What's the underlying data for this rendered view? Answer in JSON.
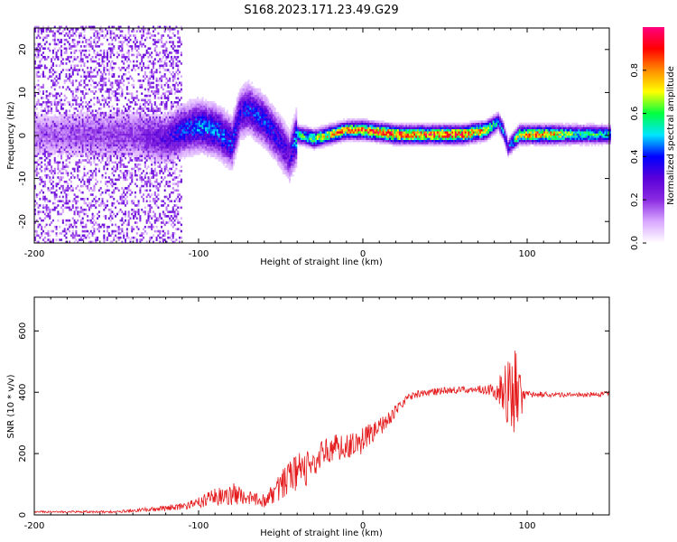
{
  "figure_title": "S168.2023.171.23.49.G29",
  "chart_data": [
    {
      "type": "heatmap",
      "title": "S168.2023.171.23.49.G29",
      "xlabel": "Height of straight line (km)",
      "ylabel": "Frequency (Hz)",
      "xlim": [
        -200,
        150
      ],
      "ylim": [
        -25,
        25
      ],
      "x_ticks": [
        -200,
        -100,
        0,
        100
      ],
      "x_tick_labels": [
        "-200",
        "-100",
        "0",
        "100"
      ],
      "y_ticks": [
        -20,
        -10,
        0,
        10,
        20
      ],
      "y_tick_labels": [
        "-20",
        "-10",
        "0",
        "10",
        "20"
      ],
      "colorbar": {
        "label": "Normalized spectral amplitude",
        "range": [
          0,
          1
        ],
        "ticks": [
          0.0,
          0.2,
          0.4,
          0.6,
          0.8
        ],
        "tick_labels": [
          "0.0",
          "0.2",
          "0.4",
          "0.6",
          "0.8"
        ],
        "colormap": [
          "#ffffff",
          "#d9a8ff",
          "#8a2be2",
          "#5a00d8",
          "#0000ff",
          "#00e5ff",
          "#00ff40",
          "#ffff00",
          "#ff8c00",
          "#ff0000",
          "#ff0080"
        ]
      },
      "ridge": {
        "description": "spectral energy concentrated near 0 Hz, drifting at low heights",
        "x": [
          -200,
          -140,
          -120,
          -110,
          -100,
          -90,
          -80,
          -75,
          -70,
          -60,
          -50,
          -45,
          -40,
          -30,
          -20,
          -10,
          0,
          20,
          40,
          60,
          75,
          82,
          85,
          88,
          95,
          110,
          130,
          150
        ],
        "freq": [
          0,
          0,
          -1,
          1,
          2,
          1,
          -2,
          5,
          6,
          3,
          -2,
          -5,
          0,
          -1,
          0,
          1,
          1,
          0,
          0,
          0,
          1,
          3,
          1,
          -3,
          0,
          0,
          0,
          0
        ],
        "amp": [
          0.15,
          0.2,
          0.3,
          0.4,
          0.45,
          0.45,
          0.4,
          0.35,
          0.4,
          0.4,
          0.35,
          0.3,
          0.55,
          0.65,
          0.75,
          0.8,
          0.85,
          0.9,
          0.85,
          0.9,
          0.8,
          0.45,
          0.5,
          0.35,
          0.75,
          0.85,
          0.6,
          0.55
        ]
      }
    },
    {
      "type": "line",
      "xlabel": "Height of straight line (km)",
      "ylabel": "SNR (10 * v/v)",
      "xlim": [
        -200,
        150
      ],
      "ylim": [
        0,
        710
      ],
      "x_ticks": [
        -200,
        -100,
        0,
        100
      ],
      "x_tick_labels": [
        "-200",
        "-100",
        "0",
        "100"
      ],
      "y_ticks": [
        0,
        200,
        400,
        600
      ],
      "y_tick_labels": [
        "0",
        "200",
        "400",
        "600"
      ],
      "color": "#e41a1c",
      "envelope": {
        "x": [
          -200,
          -150,
          -130,
          -110,
          -100,
          -90,
          -80,
          -70,
          -60,
          -50,
          -40,
          -35,
          -30,
          -20,
          -10,
          0,
          10,
          20,
          25,
          30,
          40,
          50,
          60,
          70,
          80,
          85,
          88,
          92,
          95,
          98,
          100,
          110,
          120,
          130,
          140,
          150
        ],
        "mean": [
          10,
          10,
          18,
          28,
          40,
          60,
          70,
          55,
          45,
          95,
          140,
          150,
          175,
          215,
          230,
          240,
          285,
          340,
          370,
          390,
          400,
          405,
          410,
          410,
          405,
          400,
          400,
          395,
          395,
          395,
          395,
          393,
          392,
          392,
          393,
          395
        ],
        "noise": [
          3,
          4,
          7,
          12,
          18,
          30,
          40,
          22,
          22,
          45,
          60,
          70,
          50,
          45,
          45,
          45,
          30,
          22,
          15,
          12,
          12,
          12,
          12,
          12,
          20,
          75,
          110,
          160,
          130,
          35,
          12,
          9,
          8,
          8,
          8,
          8
        ]
      }
    }
  ]
}
